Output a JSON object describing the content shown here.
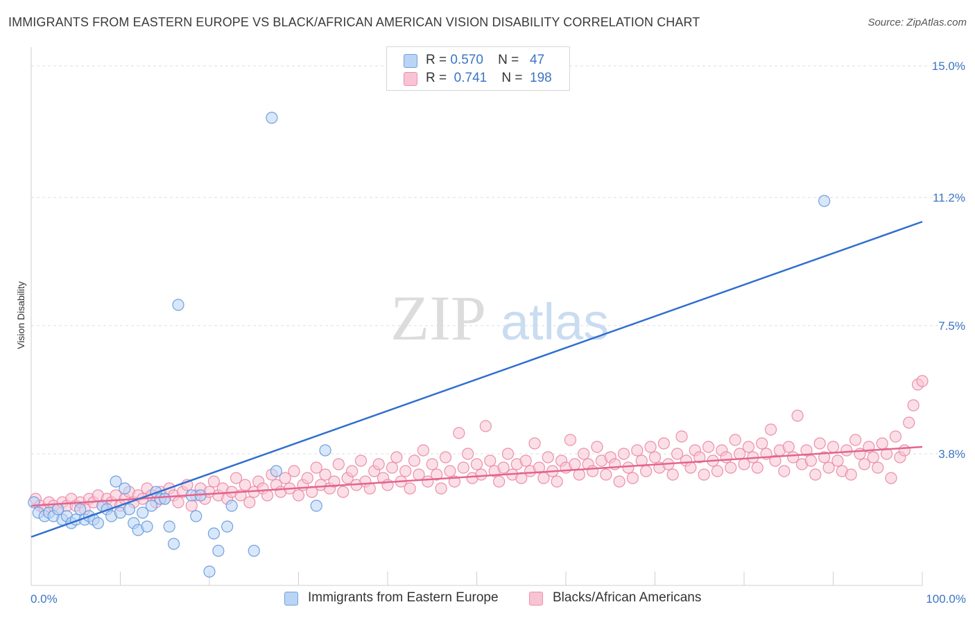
{
  "title": "IMMIGRANTS FROM EASTERN EUROPE VS BLACK/AFRICAN AMERICAN VISION DISABILITY CORRELATION CHART",
  "source": "Source: ZipAtlas.com",
  "watermark": {
    "zip": "ZIP",
    "atlas": "atlas"
  },
  "legend": {
    "rows": [
      {
        "r_label": "R =",
        "r_value": "0.570",
        "n_label": "N =",
        "n_value": "47"
      },
      {
        "r_label": "R =",
        "r_value": "0.741",
        "n_label": "N =",
        "n_value": "198"
      }
    ]
  },
  "chart_data": {
    "type": "scatter",
    "title": "IMMIGRANTS FROM EASTERN EUROPE VS BLACK/AFRICAN AMERICAN VISION DISABILITY CORRELATION CHART",
    "xlabel": "",
    "ylabel": "Vision Disability",
    "xlim": [
      0,
      100
    ],
    "ylim": [
      0,
      15.4
    ],
    "y_ticks": [
      3.8,
      7.5,
      11.2,
      15.0
    ],
    "y_tick_labels": [
      "3.8%",
      "7.5%",
      "11.2%",
      "15.0%"
    ],
    "x_tick_labels": [
      "0.0%",
      "100.0%"
    ],
    "colors": {
      "blue_fill": "#b9d4f5",
      "blue_stroke": "#6fa0de",
      "blue_line": "#2f6fce",
      "pink_fill": "#f8c4d4",
      "pink_stroke": "#ec8eab",
      "pink_line": "#e4638f",
      "tick_text": "#3a75c4",
      "grid": "#dcdcdc"
    },
    "series": [
      {
        "name": "Immigrants from Eastern Europe",
        "r": 0.57,
        "n": 47,
        "trend": {
          "x": [
            0,
            100
          ],
          "y": [
            1.4,
            10.5
          ]
        },
        "points": [
          [
            0.3,
            2.4
          ],
          [
            0.8,
            2.1
          ],
          [
            1.5,
            2.0
          ],
          [
            2.0,
            2.1
          ],
          [
            2.5,
            2.0
          ],
          [
            3.0,
            2.2
          ],
          [
            3.5,
            1.9
          ],
          [
            4.0,
            2.0
          ],
          [
            4.5,
            1.8
          ],
          [
            5.0,
            1.9
          ],
          [
            5.5,
            2.2
          ],
          [
            6.0,
            1.9
          ],
          [
            6.5,
            2.0
          ],
          [
            7.0,
            1.9
          ],
          [
            7.5,
            1.8
          ],
          [
            8.0,
            2.3
          ],
          [
            8.5,
            2.2
          ],
          [
            9.0,
            2.0
          ],
          [
            9.5,
            3.0
          ],
          [
            10.0,
            2.1
          ],
          [
            10.5,
            2.8
          ],
          [
            11.0,
            2.2
          ],
          [
            11.5,
            1.8
          ],
          [
            12.0,
            1.6
          ],
          [
            12.5,
            2.1
          ],
          [
            13.0,
            1.7
          ],
          [
            13.5,
            2.3
          ],
          [
            14.0,
            2.7
          ],
          [
            14.5,
            2.5
          ],
          [
            15.0,
            2.5
          ],
          [
            15.5,
            1.7
          ],
          [
            16.0,
            1.2
          ],
          [
            16.5,
            8.1
          ],
          [
            18.0,
            2.6
          ],
          [
            18.5,
            2.0
          ],
          [
            19.0,
            2.6
          ],
          [
            20.0,
            0.4
          ],
          [
            20.5,
            1.5
          ],
          [
            21.0,
            1.0
          ],
          [
            22.0,
            1.7
          ],
          [
            22.5,
            2.3
          ],
          [
            25.0,
            1.0
          ],
          [
            27.0,
            13.5
          ],
          [
            27.5,
            3.3
          ],
          [
            32.0,
            2.3
          ],
          [
            33.0,
            3.9
          ],
          [
            89.0,
            11.1
          ]
        ]
      },
      {
        "name": "Blacks/African Americans",
        "r": 0.741,
        "n": 198,
        "trend": {
          "x": [
            0,
            100
          ],
          "y": [
            2.3,
            4.0
          ]
        },
        "points": [
          [
            0.5,
            2.5
          ],
          [
            1.0,
            2.3
          ],
          [
            1.5,
            2.2
          ],
          [
            2.0,
            2.4
          ],
          [
            2.5,
            2.3
          ],
          [
            3.0,
            2.2
          ],
          [
            3.5,
            2.4
          ],
          [
            4.0,
            2.3
          ],
          [
            4.5,
            2.5
          ],
          [
            5.0,
            2.3
          ],
          [
            5.5,
            2.4
          ],
          [
            6.0,
            2.2
          ],
          [
            6.5,
            2.5
          ],
          [
            7.0,
            2.4
          ],
          [
            7.5,
            2.6
          ],
          [
            8.0,
            2.3
          ],
          [
            8.5,
            2.5
          ],
          [
            9.0,
            2.4
          ],
          [
            9.5,
            2.6
          ],
          [
            10.0,
            2.3
          ],
          [
            10.5,
            2.5
          ],
          [
            11.0,
            2.7
          ],
          [
            11.5,
            2.4
          ],
          [
            12.0,
            2.6
          ],
          [
            12.5,
            2.5
          ],
          [
            13.0,
            2.8
          ],
          [
            13.5,
            2.6
          ],
          [
            14.0,
            2.4
          ],
          [
            14.5,
            2.7
          ],
          [
            15.0,
            2.5
          ],
          [
            15.5,
            2.8
          ],
          [
            16.0,
            2.6
          ],
          [
            16.5,
            2.4
          ],
          [
            17.0,
            2.7
          ],
          [
            17.5,
            2.9
          ],
          [
            18.0,
            2.3
          ],
          [
            18.5,
            2.6
          ],
          [
            19.0,
            2.8
          ],
          [
            19.5,
            2.5
          ],
          [
            20.0,
            2.7
          ],
          [
            20.5,
            3.0
          ],
          [
            21.0,
            2.6
          ],
          [
            21.5,
            2.8
          ],
          [
            22.0,
            2.5
          ],
          [
            22.5,
            2.7
          ],
          [
            23.0,
            3.1
          ],
          [
            23.5,
            2.6
          ],
          [
            24.0,
            2.9
          ],
          [
            24.5,
            2.4
          ],
          [
            25.0,
            2.7
          ],
          [
            25.5,
            3.0
          ],
          [
            26.0,
            2.8
          ],
          [
            26.5,
            2.6
          ],
          [
            27.0,
            3.2
          ],
          [
            27.5,
            2.9
          ],
          [
            28.0,
            2.7
          ],
          [
            28.5,
            3.1
          ],
          [
            29.0,
            2.8
          ],
          [
            29.5,
            3.3
          ],
          [
            30.0,
            2.6
          ],
          [
            30.5,
            2.9
          ],
          [
            31.0,
            3.1
          ],
          [
            31.5,
            2.7
          ],
          [
            32.0,
            3.4
          ],
          [
            32.5,
            2.9
          ],
          [
            33.0,
            3.2
          ],
          [
            33.5,
            2.8
          ],
          [
            34.0,
            3.0
          ],
          [
            34.5,
            3.5
          ],
          [
            35.0,
            2.7
          ],
          [
            35.5,
            3.1
          ],
          [
            36.0,
            3.3
          ],
          [
            36.5,
            2.9
          ],
          [
            37.0,
            3.6
          ],
          [
            37.5,
            3.0
          ],
          [
            38.0,
            2.8
          ],
          [
            38.5,
            3.3
          ],
          [
            39.0,
            3.5
          ],
          [
            39.5,
            3.1
          ],
          [
            40.0,
            2.9
          ],
          [
            40.5,
            3.4
          ],
          [
            41.0,
            3.7
          ],
          [
            41.5,
            3.0
          ],
          [
            42.0,
            3.3
          ],
          [
            42.5,
            2.8
          ],
          [
            43.0,
            3.6
          ],
          [
            43.5,
            3.2
          ],
          [
            44.0,
            3.9
          ],
          [
            44.5,
            3.0
          ],
          [
            45.0,
            3.5
          ],
          [
            45.5,
            3.2
          ],
          [
            46.0,
            2.8
          ],
          [
            46.5,
            3.7
          ],
          [
            47.0,
            3.3
          ],
          [
            47.5,
            3.0
          ],
          [
            48.0,
            4.4
          ],
          [
            48.5,
            3.4
          ],
          [
            49.0,
            3.8
          ],
          [
            49.5,
            3.1
          ],
          [
            50.0,
            3.5
          ],
          [
            50.5,
            3.2
          ],
          [
            51.0,
            4.6
          ],
          [
            51.5,
            3.6
          ],
          [
            52.0,
            3.3
          ],
          [
            52.5,
            3.0
          ],
          [
            53.0,
            3.4
          ],
          [
            53.5,
            3.8
          ],
          [
            54.0,
            3.2
          ],
          [
            54.5,
            3.5
          ],
          [
            55.0,
            3.1
          ],
          [
            55.5,
            3.6
          ],
          [
            56.0,
            3.3
          ],
          [
            56.5,
            4.1
          ],
          [
            57.0,
            3.4
          ],
          [
            57.5,
            3.1
          ],
          [
            58.0,
            3.7
          ],
          [
            58.5,
            3.3
          ],
          [
            59.0,
            3.0
          ],
          [
            59.5,
            3.6
          ],
          [
            60.0,
            3.4
          ],
          [
            60.5,
            4.2
          ],
          [
            61.0,
            3.5
          ],
          [
            61.5,
            3.2
          ],
          [
            62.0,
            3.8
          ],
          [
            62.5,
            3.5
          ],
          [
            63.0,
            3.3
          ],
          [
            63.5,
            4.0
          ],
          [
            64.0,
            3.6
          ],
          [
            64.5,
            3.2
          ],
          [
            65.0,
            3.7
          ],
          [
            65.5,
            3.5
          ],
          [
            66.0,
            3.0
          ],
          [
            66.5,
            3.8
          ],
          [
            67.0,
            3.4
          ],
          [
            67.5,
            3.1
          ],
          [
            68.0,
            3.9
          ],
          [
            68.5,
            3.6
          ],
          [
            69.0,
            3.3
          ],
          [
            69.5,
            4.0
          ],
          [
            70.0,
            3.7
          ],
          [
            70.5,
            3.4
          ],
          [
            71.0,
            4.1
          ],
          [
            71.5,
            3.5
          ],
          [
            72.0,
            3.2
          ],
          [
            72.5,
            3.8
          ],
          [
            73.0,
            4.3
          ],
          [
            73.5,
            3.6
          ],
          [
            74.0,
            3.4
          ],
          [
            74.5,
            3.9
          ],
          [
            75.0,
            3.7
          ],
          [
            75.5,
            3.2
          ],
          [
            76.0,
            4.0
          ],
          [
            76.5,
            3.6
          ],
          [
            77.0,
            3.3
          ],
          [
            77.5,
            3.9
          ],
          [
            78.0,
            3.7
          ],
          [
            78.5,
            3.4
          ],
          [
            79.0,
            4.2
          ],
          [
            79.5,
            3.8
          ],
          [
            80.0,
            3.5
          ],
          [
            80.5,
            4.0
          ],
          [
            81.0,
            3.7
          ],
          [
            81.5,
            3.4
          ],
          [
            82.0,
            4.1
          ],
          [
            82.5,
            3.8
          ],
          [
            83.0,
            4.5
          ],
          [
            83.5,
            3.6
          ],
          [
            84.0,
            3.9
          ],
          [
            84.5,
            3.3
          ],
          [
            85.0,
            4.0
          ],
          [
            85.5,
            3.7
          ],
          [
            86.0,
            4.9
          ],
          [
            86.5,
            3.5
          ],
          [
            87.0,
            3.9
          ],
          [
            87.5,
            3.6
          ],
          [
            88.0,
            3.2
          ],
          [
            88.5,
            4.1
          ],
          [
            89.0,
            3.7
          ],
          [
            89.5,
            3.4
          ],
          [
            90.0,
            4.0
          ],
          [
            90.5,
            3.6
          ],
          [
            91.0,
            3.3
          ],
          [
            91.5,
            3.9
          ],
          [
            92.0,
            3.2
          ],
          [
            92.5,
            4.2
          ],
          [
            93.0,
            3.8
          ],
          [
            93.5,
            3.5
          ],
          [
            94.0,
            4.0
          ],
          [
            94.5,
            3.7
          ],
          [
            95.0,
            3.4
          ],
          [
            95.5,
            4.1
          ],
          [
            96.0,
            3.8
          ],
          [
            96.5,
            3.1
          ],
          [
            97.0,
            4.3
          ],
          [
            97.5,
            3.7
          ],
          [
            98.0,
            3.9
          ],
          [
            98.5,
            4.7
          ],
          [
            99.0,
            5.2
          ],
          [
            99.5,
            5.8
          ],
          [
            100.0,
            5.9
          ]
        ]
      }
    ]
  },
  "bottom_legend": [
    "Immigrants from Eastern Europe",
    "Blacks/African Americans"
  ]
}
